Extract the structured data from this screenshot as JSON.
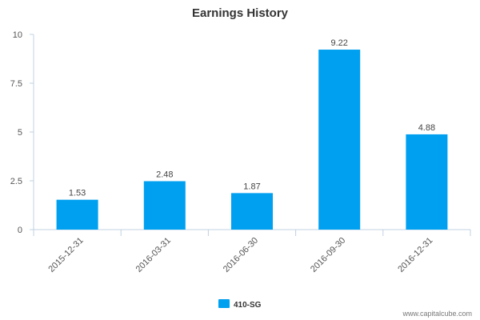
{
  "chart_data": {
    "type": "bar",
    "title": "Earnings History",
    "categories": [
      "2015-12-31",
      "2016-03-31",
      "2016-06-30",
      "2016-09-30",
      "2016-12-31"
    ],
    "series": [
      {
        "name": "410-SG",
        "values": [
          1.53,
          2.48,
          1.87,
          9.22,
          4.88
        ],
        "color": "#00a0f0"
      }
    ],
    "data_labels": [
      "1.53",
      "2.48",
      "1.87",
      "9.22",
      "4.88"
    ],
    "ylim": [
      0,
      10
    ],
    "yticks": [
      0,
      2.5,
      5,
      7.5,
      10
    ],
    "ytick_labels": [
      "0",
      "2.5",
      "5",
      "7.5",
      "10"
    ],
    "grid": false,
    "legend_position": "bottom-center"
  },
  "credit": "www.capitalcube.com"
}
